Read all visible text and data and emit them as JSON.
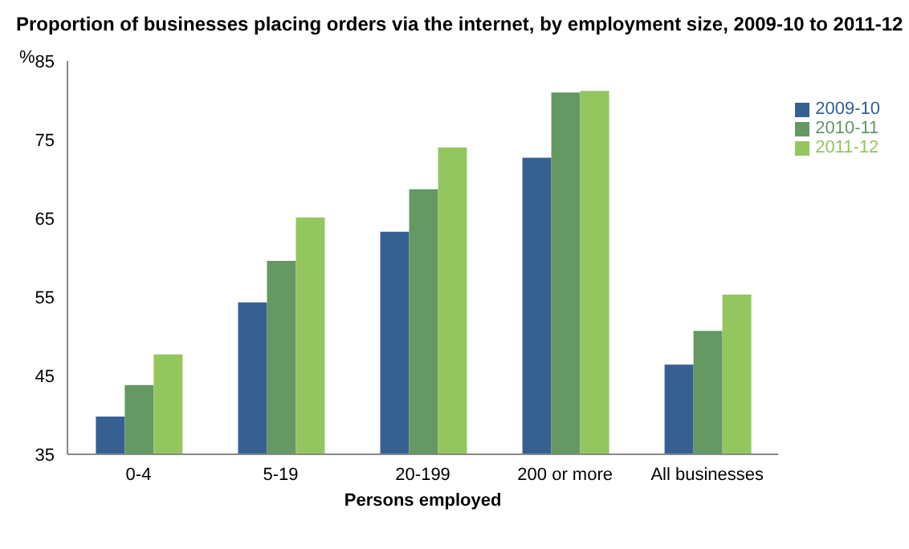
{
  "chart_data": {
    "type": "bar",
    "title": "Proportion of businesses placing orders via the internet, by employment size, 2009-10 to 2011-12",
    "ylabel": "%",
    "xlabel": "Persons employed",
    "categories": [
      "0-4",
      "5-19",
      "20-199",
      "200 or more",
      "All businesses"
    ],
    "series": [
      {
        "name": "2009-10",
        "color": "#376092",
        "values": [
          39.8,
          54.3,
          63.3,
          72.7,
          46.4
        ]
      },
      {
        "name": "2010-11",
        "color": "#659863",
        "values": [
          43.8,
          59.6,
          68.7,
          81.0,
          50.7
        ]
      },
      {
        "name": "2011-12",
        "color": "#94c660",
        "values": [
          47.7,
          65.1,
          74.0,
          81.2,
          55.3
        ]
      }
    ],
    "ylim": [
      35,
      85
    ],
    "yticks": [
      35,
      45,
      55,
      65,
      75,
      85
    ],
    "grid": false,
    "legend": "right"
  }
}
